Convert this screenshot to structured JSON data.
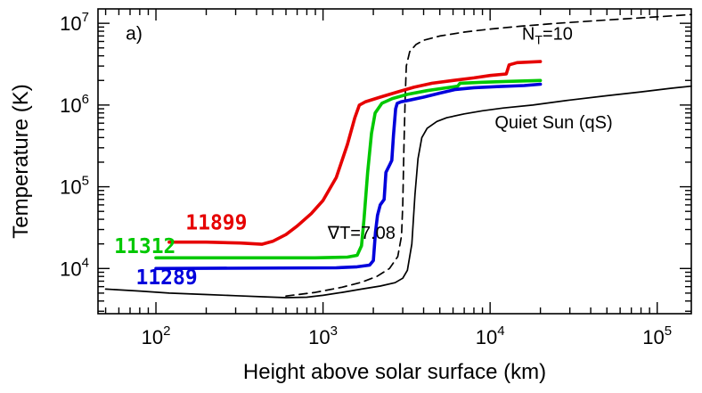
{
  "chart_data": {
    "type": "line",
    "title": "",
    "xlabel": "Height above solar surface (km)",
    "ylabel": "Temperature (K)",
    "xscale": "log",
    "yscale": "log",
    "xlim": [
      45,
      160000
    ],
    "ylim": [
      2800,
      15000000
    ],
    "grid": false,
    "legend": "inline-labels",
    "tick_base": "10",
    "x_ticks": [
      {
        "value": 100,
        "exp": "2"
      },
      {
        "value": 1000,
        "exp": "3"
      },
      {
        "value": 10000,
        "exp": "4"
      },
      {
        "value": 100000,
        "exp": "5"
      }
    ],
    "y_ticks": [
      {
        "value": 10000,
        "exp": "4"
      },
      {
        "value": 100000,
        "exp": "5"
      },
      {
        "value": 1000000,
        "exp": "6"
      },
      {
        "value": 10000000,
        "exp": "7"
      }
    ],
    "series": [
      {
        "name": "Quiet Sun (qS)",
        "color": "#000000",
        "width": 1.7,
        "dash": null,
        "points": [
          [
            50,
            5600
          ],
          [
            80,
            5300
          ],
          [
            120,
            5000
          ],
          [
            200,
            4800
          ],
          [
            300,
            4650
          ],
          [
            450,
            4500
          ],
          [
            600,
            4400
          ],
          [
            800,
            4450
          ],
          [
            1000,
            4700
          ],
          [
            1300,
            5100
          ],
          [
            1700,
            5600
          ],
          [
            2200,
            6100
          ],
          [
            2700,
            6700
          ],
          [
            3000,
            7600
          ],
          [
            3200,
            9500
          ],
          [
            3400,
            20000
          ],
          [
            3550,
            80000
          ],
          [
            3700,
            220000
          ],
          [
            3900,
            400000
          ],
          [
            4200,
            520000
          ],
          [
            4800,
            630000
          ],
          [
            5500,
            700000
          ],
          [
            7000,
            780000
          ],
          [
            9000,
            850000
          ],
          [
            12000,
            920000
          ],
          [
            18000,
            1000000
          ],
          [
            30000,
            1150000
          ],
          [
            50000,
            1300000
          ],
          [
            80000,
            1450000
          ],
          [
            120000,
            1600000
          ],
          [
            160000,
            1700000
          ]
        ]
      },
      {
        "name": "NT=10",
        "color": "#000000",
        "width": 1.7,
        "dash": "9,6",
        "points": [
          [
            600,
            4600
          ],
          [
            900,
            5100
          ],
          [
            1300,
            5900
          ],
          [
            1700,
            6800
          ],
          [
            2100,
            8000
          ],
          [
            2500,
            10000
          ],
          [
            2800,
            14000
          ],
          [
            2950,
            25000
          ],
          [
            3000,
            60000
          ],
          [
            3050,
            300000
          ],
          [
            3100,
            1200000
          ],
          [
            3150,
            3000000
          ],
          [
            3300,
            4500000
          ],
          [
            3600,
            5500000
          ],
          [
            4000,
            6200000
          ],
          [
            5000,
            7000000
          ],
          [
            7000,
            7800000
          ],
          [
            10000,
            8500000
          ],
          [
            15000,
            9200000
          ],
          [
            25000,
            10000000
          ],
          [
            50000,
            11000000
          ],
          [
            100000,
            12000000
          ],
          [
            160000,
            12800000
          ]
        ]
      },
      {
        "name": "11312",
        "color": "#00c800",
        "width": 3.6,
        "dash": null,
        "points": [
          [
            100,
            13500
          ],
          [
            900,
            13500
          ],
          [
            1400,
            13800
          ],
          [
            1600,
            14500
          ],
          [
            1700,
            19000
          ],
          [
            1760,
            40000
          ],
          [
            1850,
            150000
          ],
          [
            1950,
            450000
          ],
          [
            2050,
            800000
          ],
          [
            2250,
            1050000
          ],
          [
            2600,
            1200000
          ],
          [
            3200,
            1350000
          ],
          [
            4200,
            1500000
          ],
          [
            5200,
            1600000
          ],
          [
            6400,
            1700000
          ],
          [
            6600,
            1850000
          ],
          [
            9000,
            1900000
          ],
          [
            13000,
            1950000
          ],
          [
            20000,
            2000000
          ]
        ]
      },
      {
        "name": "11289",
        "color": "#0000dc",
        "width": 3.6,
        "dash": null,
        "points": [
          [
            100,
            10000
          ],
          [
            1200,
            10200
          ],
          [
            1600,
            10500
          ],
          [
            1900,
            11000
          ],
          [
            2000,
            12500
          ],
          [
            2060,
            28000
          ],
          [
            2120,
            45000
          ],
          [
            2200,
            60000
          ],
          [
            2320,
            70000
          ],
          [
            2380,
            150000
          ],
          [
            2520,
            190000
          ],
          [
            2580,
            210000
          ],
          [
            2640,
            430000
          ],
          [
            2720,
            900000
          ],
          [
            2780,
            1050000
          ],
          [
            2950,
            1100000
          ],
          [
            3300,
            1150000
          ],
          [
            4000,
            1250000
          ],
          [
            5000,
            1400000
          ],
          [
            6200,
            1550000
          ],
          [
            8000,
            1630000
          ],
          [
            11000,
            1680000
          ],
          [
            16000,
            1730000
          ],
          [
            20000,
            1800000
          ]
        ]
      },
      {
        "name": "11899",
        "color": "#e60000",
        "width": 3.6,
        "dash": null,
        "points": [
          [
            120,
            21000
          ],
          [
            200,
            21000
          ],
          [
            320,
            20500
          ],
          [
            430,
            19800
          ],
          [
            500,
            21500
          ],
          [
            600,
            26000
          ],
          [
            700,
            33000
          ],
          [
            850,
            47000
          ],
          [
            1000,
            68000
          ],
          [
            1200,
            130000
          ],
          [
            1400,
            330000
          ],
          [
            1550,
            700000
          ],
          [
            1650,
            1000000
          ],
          [
            1800,
            1100000
          ],
          [
            2200,
            1250000
          ],
          [
            2800,
            1450000
          ],
          [
            3500,
            1650000
          ],
          [
            4500,
            1850000
          ],
          [
            6000,
            2000000
          ],
          [
            8000,
            2150000
          ],
          [
            10000,
            2300000
          ],
          [
            12500,
            2400000
          ],
          [
            13000,
            3100000
          ],
          [
            14500,
            3300000
          ],
          [
            17000,
            3350000
          ],
          [
            20000,
            3400000
          ]
        ]
      }
    ],
    "annotations": [
      {
        "name": "panel-label",
        "x": 74,
        "y": 6300000,
        "color": "#000000",
        "size": 21,
        "font": "sans",
        "bold": false,
        "parts": [
          {
            "t": "a)"
          }
        ]
      },
      {
        "name": "nt10-label",
        "x": 22000,
        "y": 6300000,
        "color": "#000000",
        "size": 20,
        "font": "sans",
        "bold": false,
        "parts": [
          {
            "t": "N"
          },
          {
            "t": "T",
            "sub": true
          },
          {
            "t": "=10"
          }
        ]
      },
      {
        "name": "quiet-sun-label",
        "x": 24000,
        "y": 520000,
        "color": "#000000",
        "size": 20,
        "font": "sans",
        "bold": false,
        "parts": [
          {
            "t": "Quiet Sun (qS)"
          }
        ]
      },
      {
        "name": "region-11899-label",
        "x": 230,
        "y": 30000,
        "color": "#e60000",
        "size": 23,
        "font": "mono",
        "bold": true,
        "parts": [
          {
            "t": "11899"
          }
        ]
      },
      {
        "name": "region-11312-label",
        "x": 86,
        "y": 15500,
        "color": "#00c800",
        "size": 23,
        "font": "mono",
        "bold": true,
        "parts": [
          {
            "t": "11312"
          }
        ]
      },
      {
        "name": "region-11289-label",
        "x": 116,
        "y": 6400,
        "color": "#0000dc",
        "size": 23,
        "font": "mono",
        "bold": true,
        "parts": [
          {
            "t": "11289"
          }
        ]
      },
      {
        "name": "gradient-label",
        "x": 1700,
        "y": 23000,
        "color": "#000000",
        "size": 20,
        "font": "sans",
        "bold": false,
        "parts": [
          {
            "t": "∇T=7.08"
          }
        ]
      }
    ]
  }
}
